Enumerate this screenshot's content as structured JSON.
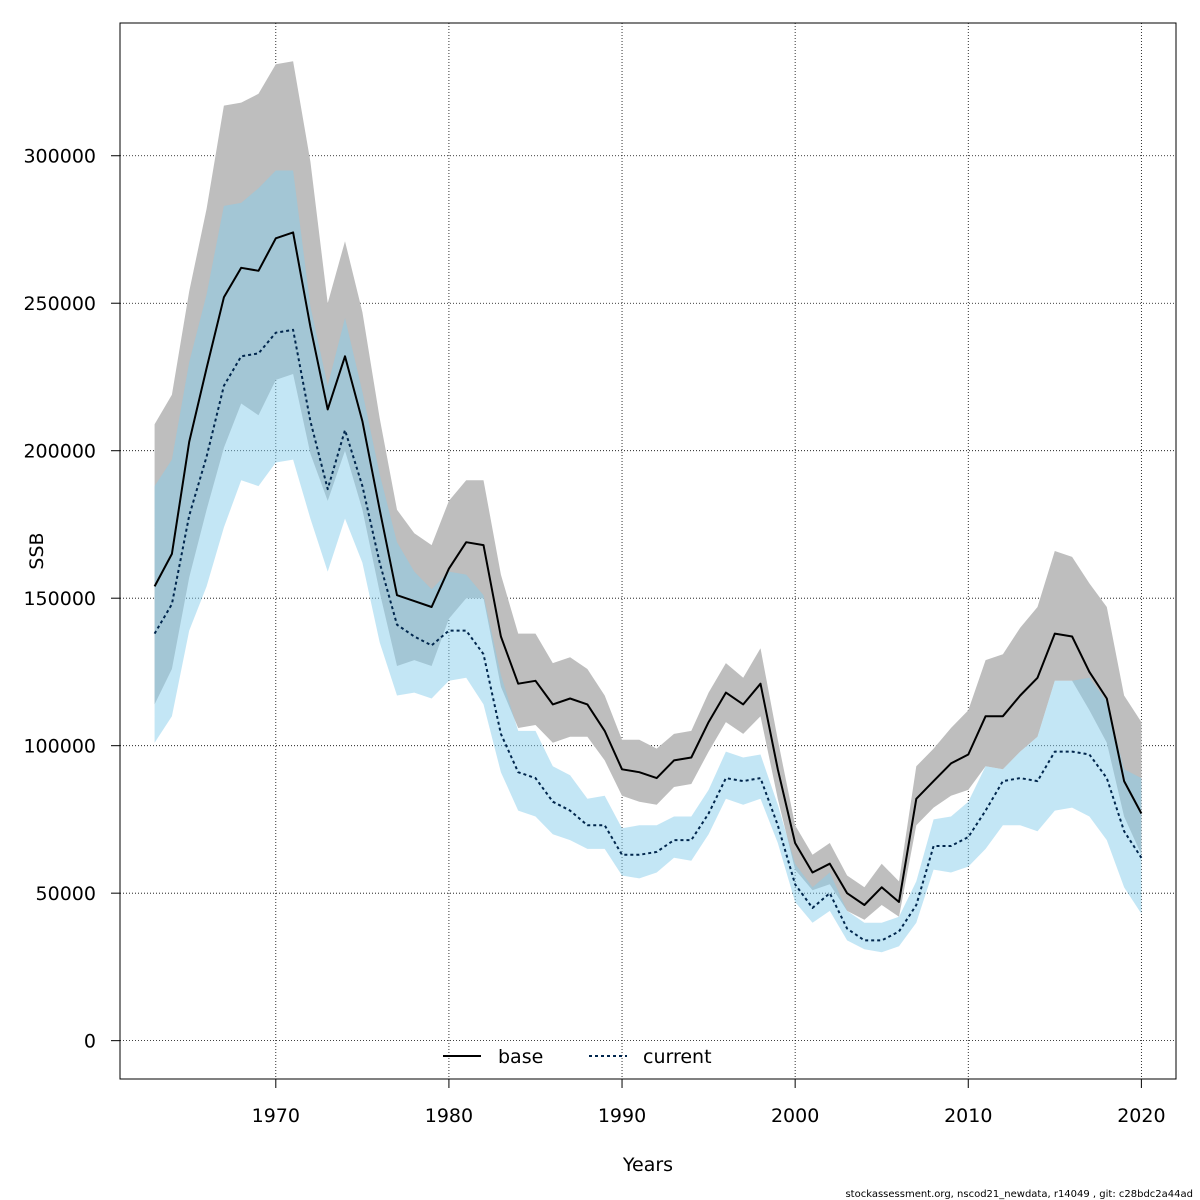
{
  "chart_data": {
    "type": "area",
    "xlabel": "Years",
    "ylabel": "SSB",
    "xlim": [
      1961,
      2022
    ],
    "ylim": [
      -13000,
      345000
    ],
    "xticks": [
      1970,
      1980,
      1990,
      2000,
      2010,
      2020
    ],
    "yticks": [
      0,
      50000,
      100000,
      150000,
      200000,
      250000,
      300000
    ],
    "grid": true,
    "legend_position": "bottom",
    "colors": {
      "base_line": "#000000",
      "base_band": "#bebebe",
      "current_line": "#00264d",
      "current_band": "#87ceeb"
    },
    "x": [
      1963,
      1964,
      1965,
      1966,
      1967,
      1968,
      1969,
      1970,
      1971,
      1972,
      1973,
      1974,
      1975,
      1976,
      1977,
      1978,
      1979,
      1980,
      1981,
      1982,
      1983,
      1984,
      1985,
      1986,
      1987,
      1988,
      1989,
      1990,
      1991,
      1992,
      1993,
      1994,
      1995,
      1996,
      1997,
      1998,
      1999,
      2000,
      2001,
      2002,
      2003,
      2004,
      2005,
      2006,
      2007,
      2008,
      2009,
      2010,
      2011,
      2012,
      2013,
      2014,
      2015,
      2016,
      2017,
      2018,
      2019,
      2020
    ],
    "series": [
      {
        "name": "base",
        "style": "solid",
        "values": [
          154000,
          165000,
          203000,
          228000,
          252000,
          262000,
          261000,
          272000,
          274000,
          242000,
          214000,
          232000,
          210000,
          180000,
          151000,
          149000,
          147000,
          160000,
          169000,
          168000,
          137000,
          121000,
          122000,
          114000,
          116000,
          114000,
          105000,
          92000,
          91000,
          89000,
          95000,
          96000,
          108000,
          118000,
          114000,
          121000,
          92000,
          67000,
          57000,
          60000,
          50000,
          46000,
          52000,
          47000,
          82000,
          88000,
          94000,
          97000,
          110000,
          110000,
          117000,
          123000,
          138000,
          137000,
          125000,
          116000,
          88000,
          77000
        ],
        "lower": [
          114000,
          126000,
          157000,
          180000,
          201000,
          216000,
          212000,
          224000,
          226000,
          199000,
          183000,
          200000,
          180000,
          152000,
          127000,
          129000,
          127000,
          143000,
          150000,
          150000,
          120000,
          106000,
          107000,
          101000,
          103000,
          103000,
          95000,
          83000,
          81000,
          80000,
          86000,
          87000,
          98000,
          108000,
          104000,
          110000,
          82000,
          58000,
          51000,
          53000,
          44000,
          41000,
          46000,
          42000,
          73000,
          79000,
          83000,
          85000,
          93000,
          92000,
          98000,
          103000,
          122000,
          122000,
          112000,
          101000,
          76000,
          63000
        ],
        "upper": [
          209000,
          219000,
          254000,
          282000,
          317000,
          318000,
          321000,
          331000,
          332000,
          298000,
          250000,
          271000,
          247000,
          211000,
          180000,
          172000,
          168000,
          183000,
          190000,
          190000,
          158000,
          138000,
          138000,
          128000,
          130000,
          126000,
          117000,
          102000,
          102000,
          99000,
          104000,
          105000,
          118000,
          128000,
          123000,
          133000,
          102000,
          73000,
          63000,
          67000,
          56000,
          52000,
          60000,
          54000,
          93000,
          99000,
          106000,
          112000,
          129000,
          131000,
          140000,
          147000,
          166000,
          164000,
          155000,
          147000,
          117000,
          108000
        ]
      },
      {
        "name": "current",
        "style": "dashed",
        "values": [
          138000,
          148000,
          178000,
          198000,
          222000,
          232000,
          233000,
          240000,
          241000,
          210000,
          187000,
          207000,
          188000,
          162000,
          141000,
          137000,
          134000,
          139000,
          139000,
          131000,
          104000,
          91000,
          89000,
          81000,
          78000,
          73000,
          73000,
          63000,
          63000,
          64000,
          68000,
          68000,
          77000,
          89000,
          88000,
          89000,
          73000,
          53000,
          45000,
          50000,
          38000,
          34000,
          34000,
          37000,
          46000,
          66000,
          66000,
          69000,
          78000,
          88000,
          89000,
          88000,
          98000,
          98000,
          97000,
          89000,
          71000,
          62000
        ],
        "lower": [
          101000,
          110000,
          139000,
          154000,
          174000,
          190000,
          188000,
          196000,
          197000,
          177000,
          159000,
          177000,
          162000,
          135000,
          117000,
          118000,
          116000,
          122000,
          123000,
          114000,
          91000,
          78000,
          76000,
          70000,
          68000,
          65000,
          65000,
          56000,
          55000,
          57000,
          62000,
          61000,
          70000,
          82000,
          80000,
          82000,
          67000,
          47000,
          40000,
          44000,
          34000,
          31000,
          30000,
          32000,
          40000,
          58000,
          57000,
          59000,
          65000,
          73000,
          73000,
          71000,
          78000,
          79000,
          76000,
          68000,
          52000,
          43000
        ],
        "upper": [
          188000,
          197000,
          230000,
          253000,
          283000,
          284000,
          289000,
          295000,
          295000,
          249000,
          222000,
          245000,
          220000,
          192000,
          169000,
          159000,
          153000,
          159000,
          158000,
          151000,
          124000,
          105000,
          105000,
          93000,
          90000,
          82000,
          83000,
          72000,
          73000,
          73000,
          76000,
          76000,
          85000,
          98000,
          96000,
          97000,
          80000,
          60000,
          52000,
          57000,
          44000,
          40000,
          40000,
          42000,
          54000,
          75000,
          76000,
          81000,
          93000,
          92000,
          98000,
          103000,
          122000,
          122000,
          123000,
          115000,
          92000,
          89000
        ]
      }
    ],
    "legend": [
      "base",
      "current"
    ]
  },
  "footer": "stockassessment.org, nscod21_newdata, r14049 , git: c28bdc2a44ad"
}
